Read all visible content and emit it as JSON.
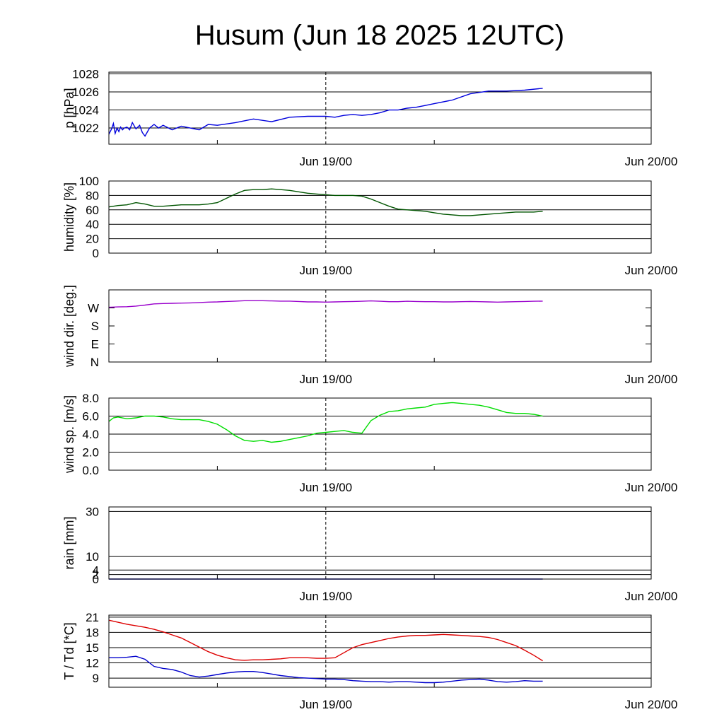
{
  "title": "Husum (Jun 18 2025 12UTC)",
  "chart_data": [
    {
      "id": "pressure",
      "type": "line",
      "ylabel": "p [hPa]",
      "ylim": [
        1020.2,
        1028.2
      ],
      "yticks": [
        1022,
        1024,
        1026,
        1028
      ],
      "ytick_labels": [
        "1022",
        "1024",
        "1026",
        "1028"
      ],
      "grid": true,
      "x_tick_labels": [
        "Jun 19/00",
        "Jun 20/00"
      ],
      "series": [
        {
          "color": "#0000dd",
          "x": [
            0,
            0.3,
            0.5,
            0.7,
            0.9,
            1.1,
            1.3,
            1.5,
            1.7,
            2,
            2.3,
            2.6,
            3,
            3.4,
            3.7,
            4,
            4.5,
            5,
            5.5,
            6,
            7,
            8,
            9,
            10,
            11,
            12,
            14,
            16,
            18,
            20,
            22,
            24,
            25,
            26,
            27,
            28,
            29,
            30,
            31,
            32,
            33,
            34,
            35,
            36,
            38,
            40,
            42,
            44,
            46,
            48
          ],
          "y": [
            1021.3,
            1021.9,
            1022.5,
            1021.4,
            1022.0,
            1021.6,
            1022.1,
            1021.8,
            1022.0,
            1022.1,
            1021.8,
            1022.6,
            1021.9,
            1022.3,
            1021.5,
            1021.1,
            1022.0,
            1022.4,
            1022.0,
            1022.3,
            1021.8,
            1022.2,
            1022.0,
            1021.8,
            1022.4,
            1022.3,
            1022.6,
            1023.0,
            1022.7,
            1023.2,
            1023.3,
            1023.3,
            1023.2,
            1023.4,
            1023.5,
            1023.4,
            1023.5,
            1023.7,
            1024.0,
            1024.0,
            1024.2,
            1024.3,
            1024.5,
            1024.7,
            1025.1,
            1025.8,
            1026.1,
            1026.1,
            1026.2,
            1026.4
          ]
        }
      ]
    },
    {
      "id": "humidity",
      "type": "line",
      "ylabel": "humidity [%]",
      "ylim": [
        0,
        100
      ],
      "yticks": [
        0,
        20,
        40,
        60,
        80,
        100
      ],
      "ytick_labels": [
        "0",
        "20",
        "40",
        "60",
        "80",
        "100"
      ],
      "grid": true,
      "x_tick_labels": [
        "Jun 19/00",
        "Jun 20/00"
      ],
      "series": [
        {
          "color": "#005500",
          "x": [
            0,
            1,
            2,
            3,
            4,
            5,
            6,
            7,
            8,
            9,
            10,
            11,
            12,
            13,
            14,
            15,
            16,
            17,
            18,
            19,
            20,
            21,
            22,
            23,
            24,
            25,
            26,
            27,
            28,
            29,
            30,
            31,
            32,
            33,
            34,
            35,
            36,
            37,
            38,
            39,
            40,
            41,
            42,
            43,
            44,
            45,
            46,
            47,
            48
          ],
          "y": [
            64,
            66,
            67,
            70,
            68,
            65,
            65,
            66,
            67,
            67,
            67,
            68,
            70,
            76,
            82,
            87,
            88,
            88,
            89,
            88,
            87,
            85,
            83,
            82,
            81,
            80,
            80,
            80,
            79,
            75,
            70,
            65,
            61,
            60,
            59,
            58,
            56,
            54,
            53,
            52,
            52,
            53,
            54,
            55,
            56,
            57,
            57,
            57,
            58
          ]
        }
      ]
    },
    {
      "id": "wind-direction",
      "type": "line",
      "ylabel": "wind dir. [deg.]",
      "ylim": [
        0,
        360
      ],
      "yticks": [
        0,
        90,
        180,
        270
      ],
      "ytick_labels": [
        "N",
        "E",
        "S",
        "W"
      ],
      "grid": false,
      "x_tick_labels": [
        "Jun 19/00",
        "Jun 20/00"
      ],
      "series": [
        {
          "color": "#9900cc",
          "x": [
            0,
            1,
            2,
            3,
            4,
            5,
            6,
            7,
            8,
            9,
            10,
            11,
            12,
            13,
            14,
            15,
            16,
            17,
            18,
            19,
            20,
            21,
            22,
            23,
            24,
            25,
            26,
            27,
            28,
            29,
            30,
            31,
            32,
            33,
            34,
            35,
            36,
            37,
            38,
            39,
            40,
            41,
            42,
            43,
            44,
            45,
            46,
            47,
            48
          ],
          "y": [
            273,
            275,
            276,
            279,
            284,
            290,
            292,
            293,
            294,
            295,
            297,
            299,
            300,
            302,
            304,
            306,
            306,
            306,
            305,
            304,
            304,
            302,
            300,
            300,
            299,
            300,
            301,
            302,
            303,
            305,
            303,
            301,
            301,
            303,
            302,
            301,
            301,
            300,
            300,
            301,
            302,
            301,
            300,
            299,
            300,
            301,
            302,
            303,
            304
          ]
        }
      ]
    },
    {
      "id": "wind-speed",
      "type": "line",
      "ylabel": "wind sp. [m/s]",
      "ylim": [
        0,
        8
      ],
      "yticks": [
        0,
        2,
        4,
        6,
        8
      ],
      "ytick_labels": [
        "0.0",
        "2.0",
        "4.0",
        "6.0",
        "8.0"
      ],
      "grid": true,
      "x_tick_labels": [
        "Jun 19/00",
        "Jun 20/00"
      ],
      "series": [
        {
          "color": "#00dd00",
          "x": [
            0,
            0.5,
            1,
            2,
            3,
            4,
            5,
            6,
            7,
            8,
            9,
            10,
            11,
            12,
            13,
            14,
            15,
            16,
            17,
            18,
            19,
            20,
            21,
            22,
            23,
            24,
            25,
            26,
            27,
            28,
            29,
            30,
            31,
            32,
            33,
            34,
            35,
            36,
            37,
            38,
            39,
            40,
            41,
            42,
            43,
            44,
            45,
            46,
            47,
            48
          ],
          "y": [
            5.4,
            5.8,
            5.9,
            5.7,
            5.8,
            6.0,
            6.0,
            5.9,
            5.7,
            5.6,
            5.6,
            5.6,
            5.4,
            5.1,
            4.5,
            3.8,
            3.3,
            3.2,
            3.3,
            3.1,
            3.2,
            3.4,
            3.6,
            3.8,
            4.1,
            4.2,
            4.3,
            4.4,
            4.2,
            4.1,
            5.5,
            6.1,
            6.5,
            6.6,
            6.8,
            6.9,
            7.0,
            7.3,
            7.4,
            7.5,
            7.4,
            7.3,
            7.2,
            7.0,
            6.7,
            6.4,
            6.3,
            6.3,
            6.2,
            6.0
          ]
        }
      ]
    },
    {
      "id": "rain",
      "type": "line",
      "ylabel": "rain [mm]",
      "ylim": [
        0,
        32
      ],
      "yticks": [
        0,
        2,
        4,
        10,
        30
      ],
      "ytick_labels": [
        "0",
        "2",
        "4",
        "10",
        "30"
      ],
      "grid": true,
      "x_tick_labels": [
        "Jun 19/00",
        "Jun 20/00"
      ],
      "series": [
        {
          "color": "#0000aa",
          "x": [
            0,
            48
          ],
          "y": [
            0,
            0
          ]
        }
      ]
    },
    {
      "id": "temperature",
      "type": "line",
      "ylabel": "T / Td [*C]",
      "ylim": [
        7.2,
        21.4
      ],
      "yticks": [
        9,
        12,
        15,
        18,
        21
      ],
      "ytick_labels": [
        "9",
        "12",
        "15",
        "18",
        "21"
      ],
      "grid": true,
      "x_tick_labels": [
        "Jun 19/00",
        "Jun 20/00"
      ],
      "series": [
        {
          "color": "#dd0000",
          "x": [
            0,
            1,
            2,
            3,
            4,
            5,
            6,
            7,
            8,
            9,
            10,
            11,
            12,
            13,
            14,
            15,
            16,
            17,
            18,
            19,
            20,
            21,
            22,
            23,
            24,
            25,
            26,
            27,
            28,
            29,
            30,
            31,
            32,
            33,
            34,
            35,
            36,
            37,
            38,
            39,
            40,
            41,
            42,
            43,
            44,
            45,
            46,
            47,
            48
          ],
          "y": [
            20.4,
            20.0,
            19.6,
            19.3,
            19.0,
            18.6,
            18.1,
            17.5,
            16.9,
            16.0,
            15.1,
            14.2,
            13.5,
            13.0,
            12.6,
            12.5,
            12.6,
            12.6,
            12.7,
            12.8,
            13.0,
            13.0,
            13.0,
            12.9,
            12.9,
            13.0,
            14.0,
            15.0,
            15.6,
            16.0,
            16.4,
            16.8,
            17.1,
            17.3,
            17.4,
            17.4,
            17.5,
            17.6,
            17.5,
            17.4,
            17.3,
            17.2,
            17.0,
            16.6,
            16.0,
            15.4,
            14.5,
            13.5,
            12.4
          ]
        },
        {
          "color": "#0000cc",
          "x": [
            0,
            1,
            2,
            3,
            4,
            5,
            6,
            7,
            8,
            9,
            10,
            11,
            12,
            13,
            14,
            15,
            16,
            17,
            18,
            19,
            20,
            21,
            22,
            23,
            24,
            25,
            26,
            27,
            28,
            29,
            30,
            31,
            32,
            33,
            34,
            35,
            36,
            37,
            38,
            39,
            40,
            41,
            42,
            43,
            44,
            45,
            46,
            47,
            48
          ],
          "y": [
            13.0,
            13.0,
            13.1,
            13.3,
            12.7,
            11.3,
            10.9,
            10.7,
            10.2,
            9.5,
            9.2,
            9.4,
            9.7,
            10.0,
            10.2,
            10.3,
            10.3,
            10.1,
            9.8,
            9.5,
            9.3,
            9.1,
            9.0,
            8.9,
            8.8,
            8.8,
            8.7,
            8.5,
            8.4,
            8.3,
            8.3,
            8.2,
            8.3,
            8.3,
            8.2,
            8.1,
            8.1,
            8.2,
            8.4,
            8.6,
            8.7,
            8.8,
            8.6,
            8.3,
            8.2,
            8.3,
            8.5,
            8.4,
            8.4
          ]
        }
      ]
    }
  ]
}
